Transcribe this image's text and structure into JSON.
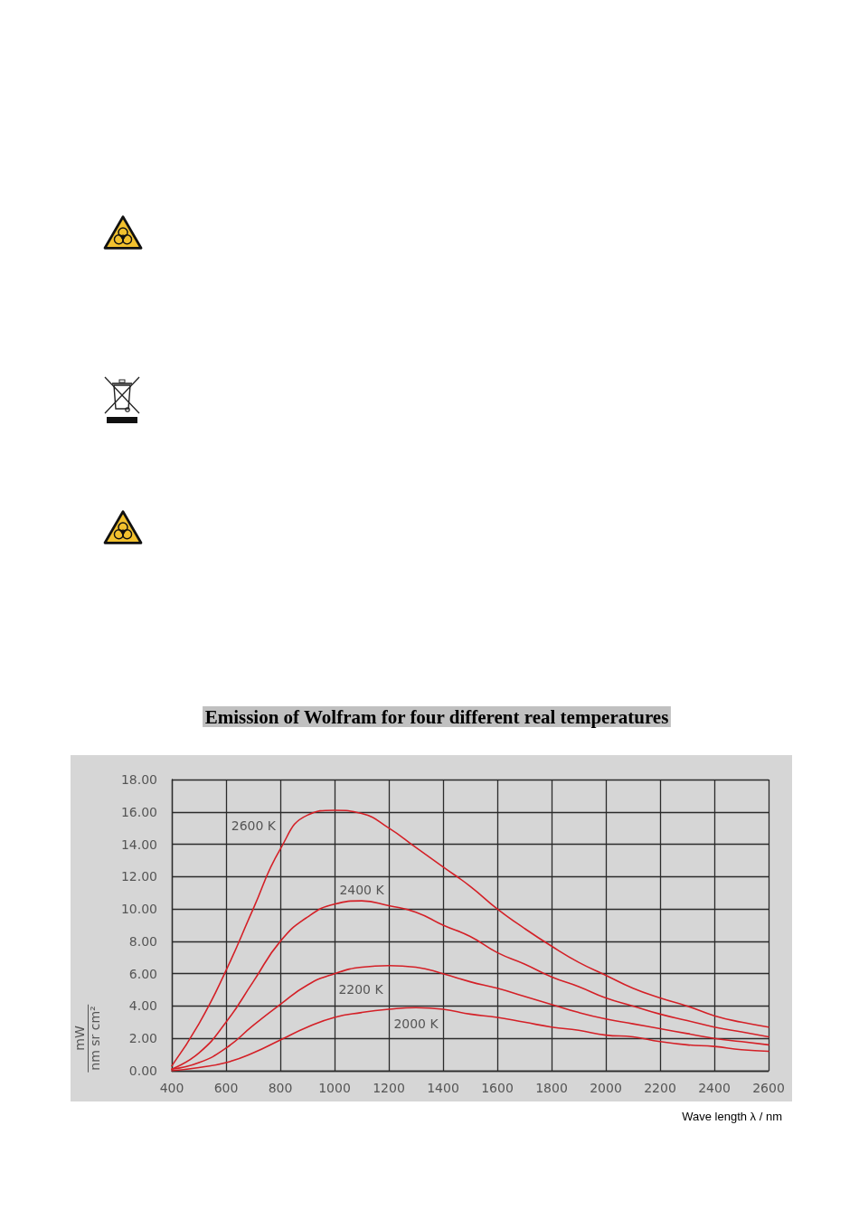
{
  "chart_data": {
    "type": "line",
    "title": "Emission of Wolfram for four different real temperatures",
    "xlabel": "Wave length λ / nm",
    "ylabel": "mW\nnm sr cm²",
    "x": [
      400,
      500,
      600,
      700,
      800,
      900,
      1000,
      1100,
      1200,
      1300,
      1400,
      1500,
      1600,
      1700,
      1800,
      1900,
      2000,
      2100,
      2200,
      2300,
      2400,
      2500,
      2600
    ],
    "series": [
      {
        "name": "2600 K",
        "color": "#d42027",
        "values": [
          0.3,
          2.9,
          6.2,
          10.0,
          13.7,
          15.8,
          16.1,
          15.9,
          15.0,
          13.8,
          12.6,
          11.4,
          10.0,
          8.8,
          7.7,
          6.7,
          5.9,
          5.1,
          4.5,
          4.0,
          3.4,
          3.0,
          2.7
        ]
      },
      {
        "name": "2400 K",
        "color": "#d42027",
        "values": [
          0.1,
          1.1,
          3.0,
          5.5,
          8.0,
          9.5,
          10.3,
          10.5,
          10.2,
          9.8,
          9.0,
          8.3,
          7.3,
          6.6,
          5.8,
          5.2,
          4.5,
          4.0,
          3.5,
          3.1,
          2.7,
          2.4,
          2.1
        ]
      },
      {
        "name": "2200 K",
        "color": "#d42027",
        "values": [
          0.1,
          0.5,
          1.4,
          2.8,
          4.1,
          5.3,
          6.0,
          6.4,
          6.5,
          6.4,
          6.0,
          5.5,
          5.1,
          4.6,
          4.1,
          3.6,
          3.2,
          2.9,
          2.6,
          2.3,
          2.0,
          1.8,
          1.6
        ]
      },
      {
        "name": "2000 K",
        "color": "#d42027",
        "values": [
          0.0,
          0.2,
          0.5,
          1.1,
          1.9,
          2.7,
          3.3,
          3.6,
          3.8,
          3.9,
          3.8,
          3.5,
          3.3,
          3.0,
          2.7,
          2.5,
          2.2,
          2.1,
          1.8,
          1.6,
          1.5,
          1.3,
          1.2
        ]
      }
    ],
    "xlim": [
      400,
      2600
    ],
    "xticks": [
      400,
      600,
      800,
      1000,
      1200,
      1400,
      1600,
      1800,
      2000,
      2200,
      2400,
      2600
    ],
    "ylim": [
      0,
      18
    ],
    "yticks": [
      {
        "value": 0,
        "label": "0.00"
      },
      {
        "value": 2,
        "label": "2.00"
      },
      {
        "value": 4,
        "label": "4.00"
      },
      {
        "value": 6,
        "label": "6.00"
      },
      {
        "value": 8,
        "label": "8.00"
      },
      {
        "value": 10,
        "label": "10.00"
      },
      {
        "value": 12,
        "label": "12.00"
      },
      {
        "value": 14,
        "label": "14.00"
      },
      {
        "value": 16,
        "label": "16.00"
      },
      {
        "value": 18,
        "label": "18.00"
      }
    ],
    "grid": true,
    "marker": "none"
  }
}
